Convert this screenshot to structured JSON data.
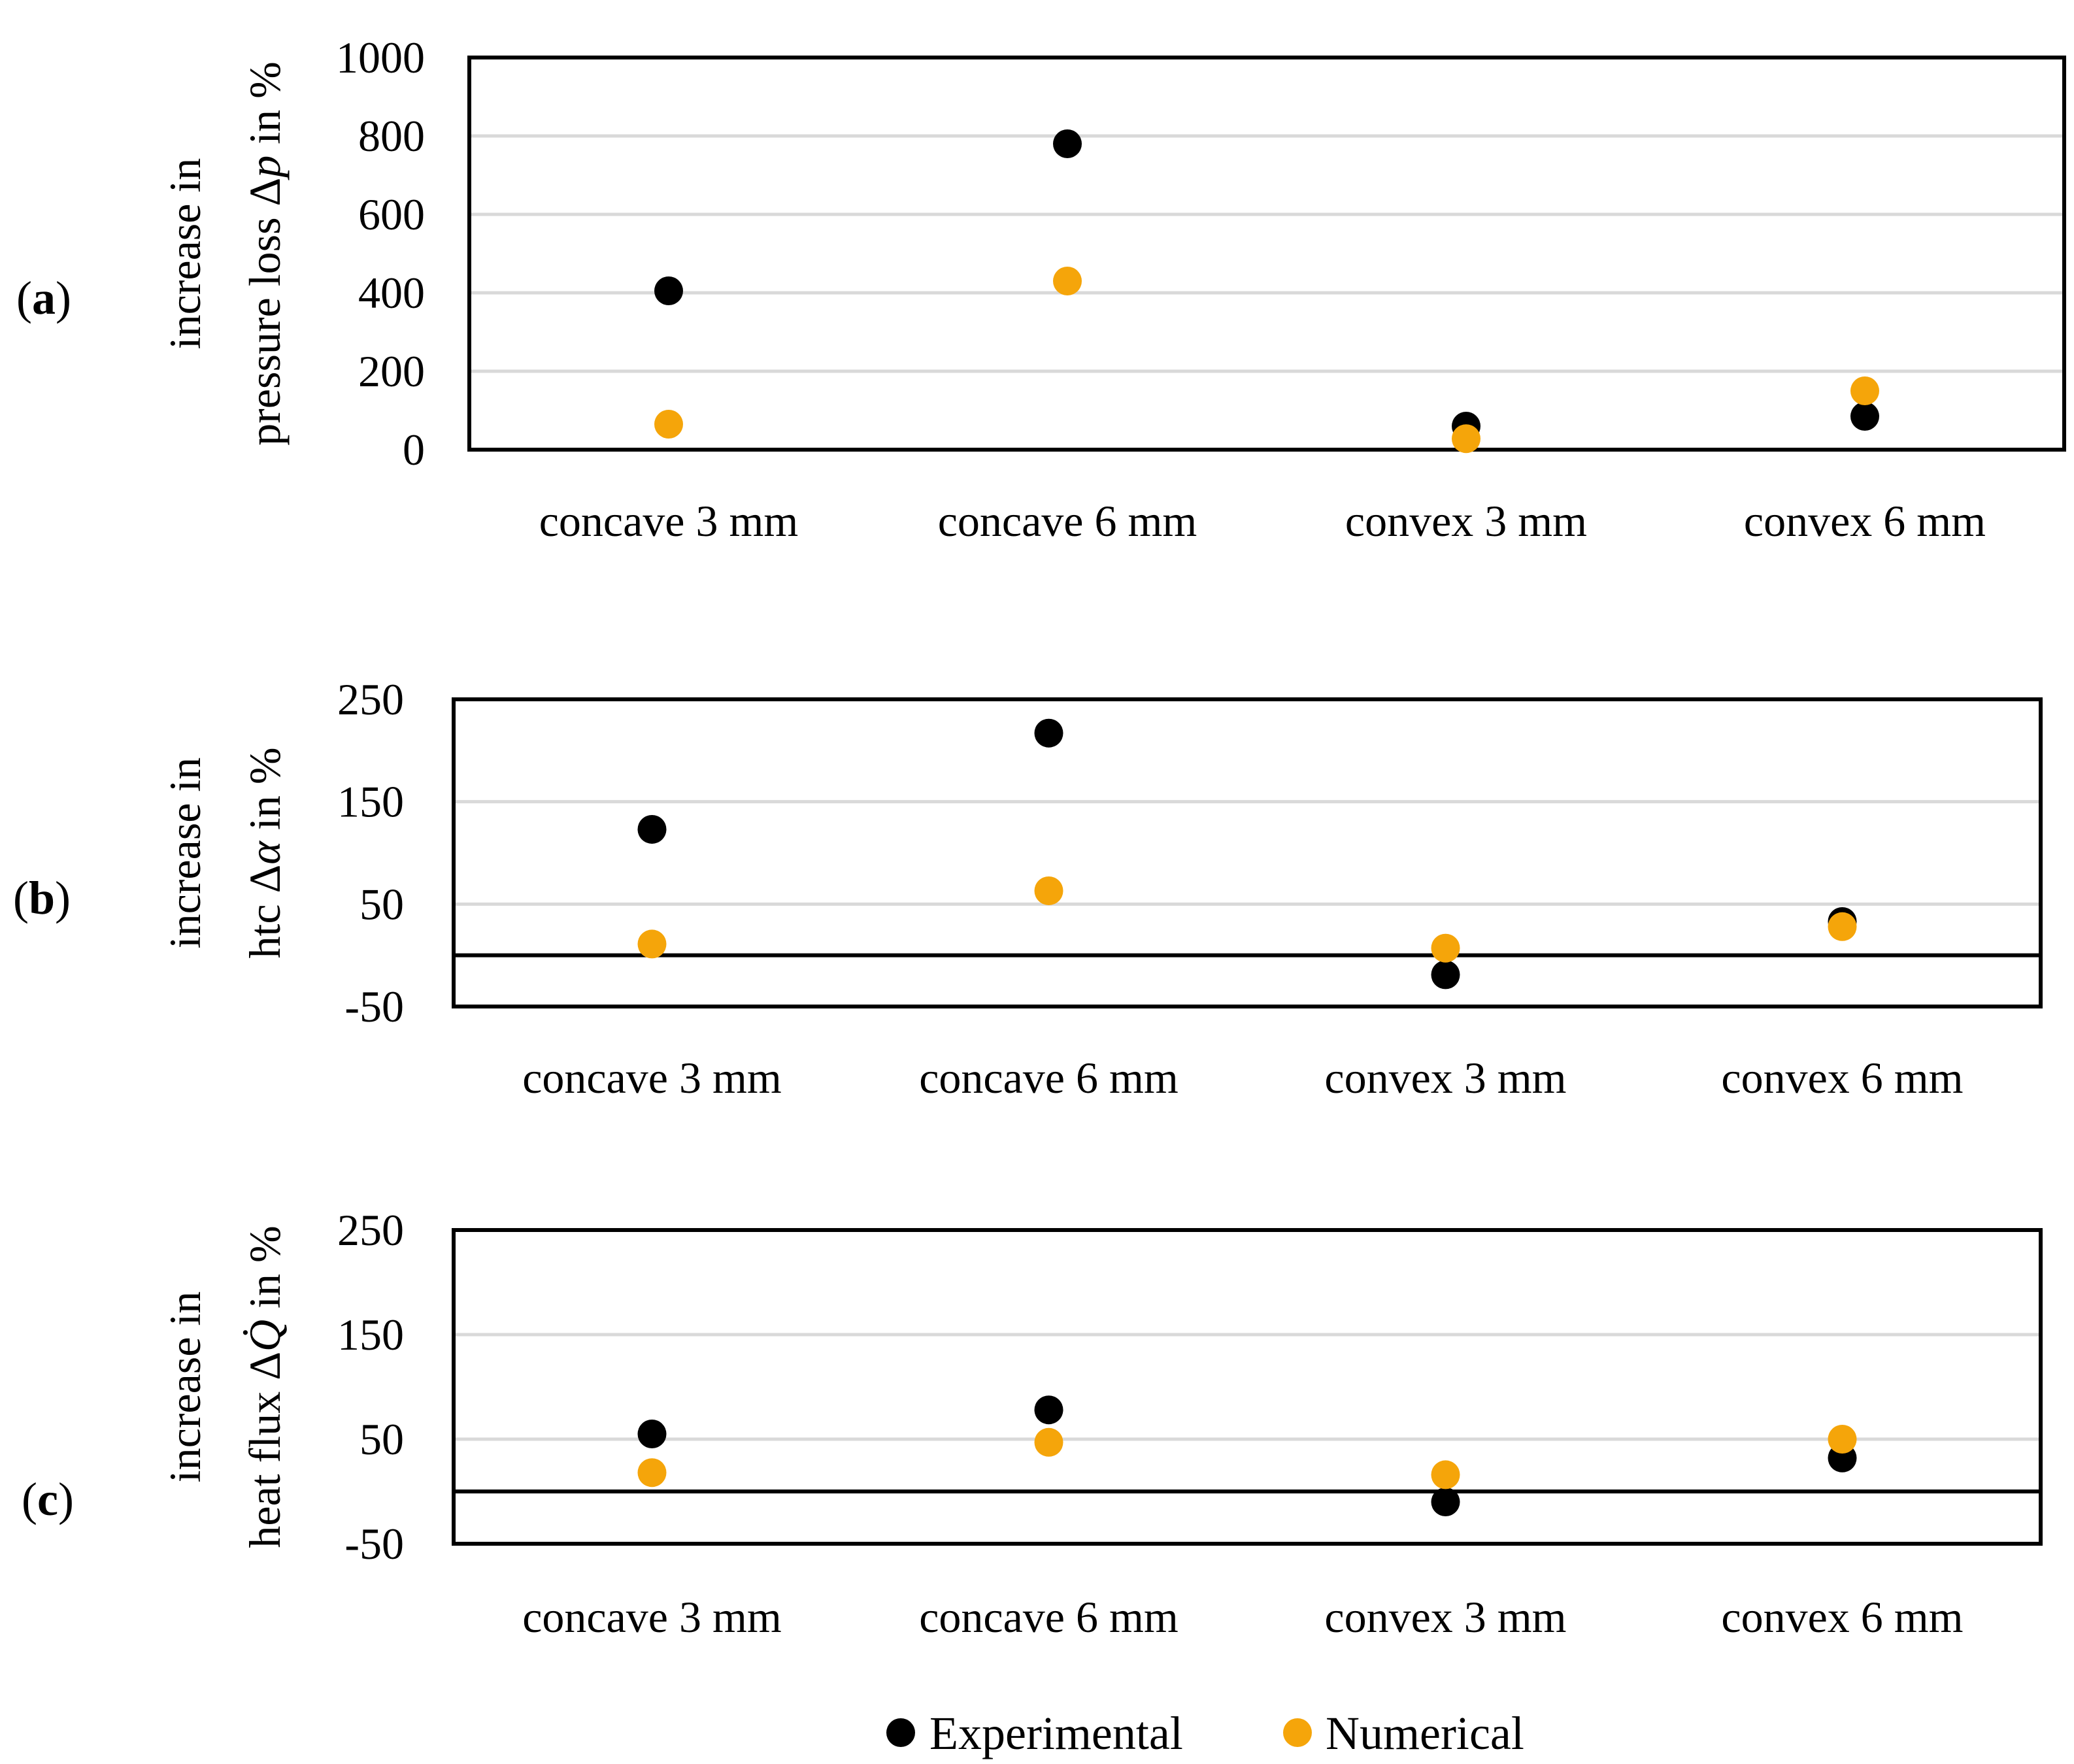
{
  "chart_data": [
    {
      "panel": "a",
      "type": "scatter",
      "categories": [
        "concave 3 mm",
        "concave 6 mm",
        "convex 3 mm",
        "convex 6 mm"
      ],
      "series": [
        {
          "name": "Experimental",
          "color": "#000000",
          "values": [
            405,
            780,
            60,
            85
          ]
        },
        {
          "name": "Numerical",
          "color": "#f5a50a",
          "values": [
            65,
            430,
            28,
            150
          ]
        }
      ],
      "ylim": [
        0,
        1000
      ],
      "yticks": [
        "0",
        "200",
        "400",
        "600",
        "800",
        "1000"
      ],
      "ylabel": {
        "line1": "increase in",
        "line2_prefix": "pressure loss Δ",
        "line2_var": "p",
        "line2_suffix": " in %"
      },
      "panel_label": {
        "open": "(",
        "letter": "a",
        "close": ")"
      }
    },
    {
      "panel": "b",
      "type": "scatter",
      "categories": [
        "concave 3 mm",
        "concave 6 mm",
        "convex 3 mm",
        "convex 6 mm"
      ],
      "series": [
        {
          "name": "Experimental",
          "color": "#000000",
          "values": [
            123,
            217,
            -19,
            33
          ]
        },
        {
          "name": "Numerical",
          "color": "#f5a50a",
          "values": [
            11,
            63,
            7,
            28
          ]
        }
      ],
      "ylim": [
        -50,
        250
      ],
      "yticks": [
        "-50",
        "50",
        "150",
        "250"
      ],
      "ylabel": {
        "line1": "increase in",
        "line2_prefix": "htc Δ",
        "line2_var": "α",
        "line2_suffix": " in %"
      },
      "panel_label": {
        "open": "(",
        "letter": "b",
        "close": ")"
      }
    },
    {
      "panel": "c",
      "type": "scatter",
      "categories": [
        "concave 3 mm",
        "concave 6 mm",
        "convex 3 mm",
        "convex 6 mm"
      ],
      "series": [
        {
          "name": "Experimental",
          "color": "#000000",
          "values": [
            55,
            78,
            -10,
            32
          ]
        },
        {
          "name": "Numerical",
          "color": "#f5a50a",
          "values": [
            18,
            47,
            16,
            50
          ]
        }
      ],
      "ylim": [
        -50,
        250
      ],
      "yticks": [
        "-50",
        "50",
        "150",
        "250"
      ],
      "ylabel": {
        "line1": "increase in",
        "line2_prefix": "heat flux Δ",
        "line2_var": "Q̇",
        "line2_suffix": " in %"
      },
      "panel_label": {
        "open": "(",
        "letter": "c",
        "close": ")"
      }
    }
  ],
  "legend": {
    "items": [
      {
        "label": "Experimental",
        "color": "#000000"
      },
      {
        "label": "Numerical",
        "color": "#f5a50a"
      }
    ]
  },
  "colors": {
    "gridline": "#d9d9d9",
    "axis": "#000000"
  }
}
